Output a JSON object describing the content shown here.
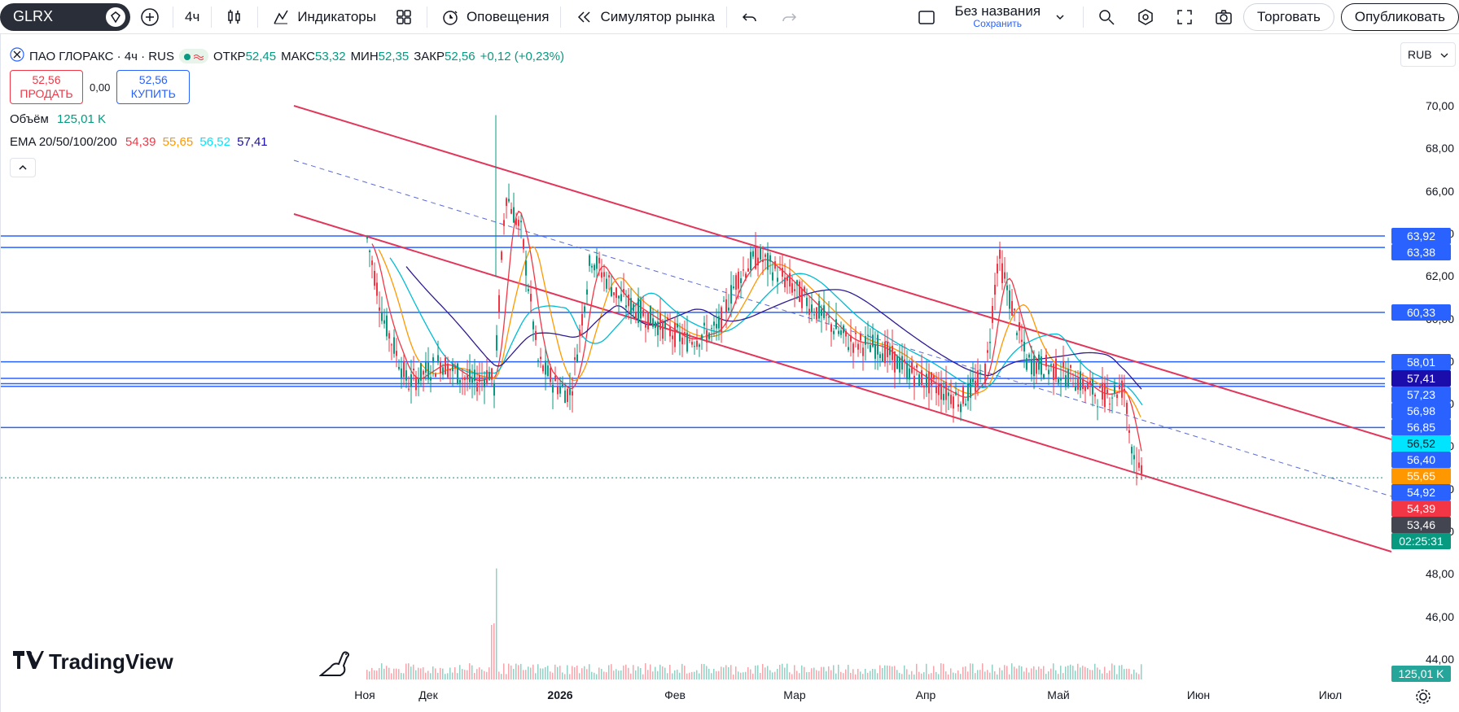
{
  "toolbar": {
    "symbol": "GLRX",
    "interval": "4ч",
    "indicators_label": "Индикаторы",
    "alerts_label": "Оповещения",
    "replay_label": "Симулятор рынка",
    "layout_name": "Без названия",
    "layout_save": "Сохранить",
    "trade_label": "Торговать",
    "publish_label": "Опубликовать"
  },
  "legend": {
    "title": "ПАО ГЛОРАКС · 4ч · RUS",
    "open_label": "ОТКР",
    "open_value": "52,45",
    "high_label": "МАКС",
    "high_value": "53,32",
    "low_label": "МИН",
    "low_value": "52,35",
    "close_label": "ЗАКР",
    "close_value": "52,56",
    "change": "+0,12 (+0,23%)",
    "sell_price": "52,56",
    "sell_label": "ПРОДАТЬ",
    "spread": "0,00",
    "buy_price": "52,56",
    "buy_label": "КУПИТЬ",
    "volume_label": "Объём",
    "volume_value": "125,01 K",
    "ema_label": "EMA 20/50/100/200",
    "ema_values": [
      "54,39",
      "55,65",
      "56,52",
      "57,41"
    ]
  },
  "currency": "RUB",
  "colors": {
    "ema20": "#f23645",
    "ema50": "#ff9800",
    "ema100": "#00bcd4",
    "ema200": "#311b92",
    "up": "#089981",
    "down": "#f23645",
    "hline": "#2962ff",
    "channel": "#e0375b"
  },
  "chart_data": {
    "type": "candlestick",
    "price_ticks": [
      "70,00",
      "68,00",
      "66,00",
      "64,00",
      "62,00",
      "60,00",
      "58,00",
      "56,00",
      "54,00",
      "52,00",
      "50,00",
      "48,00",
      "46,00",
      "44,00"
    ],
    "price_tick_values": [
      70,
      68,
      66,
      64,
      62,
      60,
      58,
      56,
      54,
      52,
      50,
      48,
      46,
      44
    ],
    "time_labels": [
      "Ноя",
      "Дек",
      "2026",
      "Фев",
      "Мар",
      "Апр",
      "Май",
      "Июн",
      "Июл"
    ],
    "ylim": [
      43,
      72
    ],
    "horizontal_levels": [
      63.92,
      63.38,
      60.33,
      58.01,
      57.23,
      56.98,
      56.85,
      54.92
    ],
    "price_tags": [
      {
        "text": "63,92",
        "value": 63.92,
        "color": "#2962ff"
      },
      {
        "text": "63,38",
        "value": 63.38,
        "color": "#2962ff"
      },
      {
        "text": "60,33",
        "value": 60.33,
        "color": "#2962ff"
      },
      {
        "text": "58,01",
        "value": 58.01,
        "color": "#2962ff"
      },
      {
        "text": "57,41",
        "value": 57.41,
        "color": "#1a0dab"
      },
      {
        "text": "57,23",
        "value": 57.23,
        "color": "#2962ff"
      },
      {
        "text": "56,98",
        "value": 56.98,
        "color": "#2962ff"
      },
      {
        "text": "56,85",
        "value": 56.85,
        "color": "#2962ff"
      },
      {
        "text": "56,52",
        "value": 56.52,
        "color": "#00e5ff"
      },
      {
        "text": "56,40",
        "value": 56.4,
        "color": "#2962ff"
      },
      {
        "text": "55,65",
        "value": 55.65,
        "color": "#ff9800"
      },
      {
        "text": "54,92",
        "value": 54.92,
        "color": "#2962ff"
      },
      {
        "text": "54,39",
        "value": 54.39,
        "color": "#f23645"
      },
      {
        "text": "53,46",
        "value": 53.46,
        "color": "#434651"
      },
      {
        "text": "02:25:31",
        "value": 52.56,
        "color": "#089981"
      }
    ],
    "volume_tag": "125,01 K"
  }
}
